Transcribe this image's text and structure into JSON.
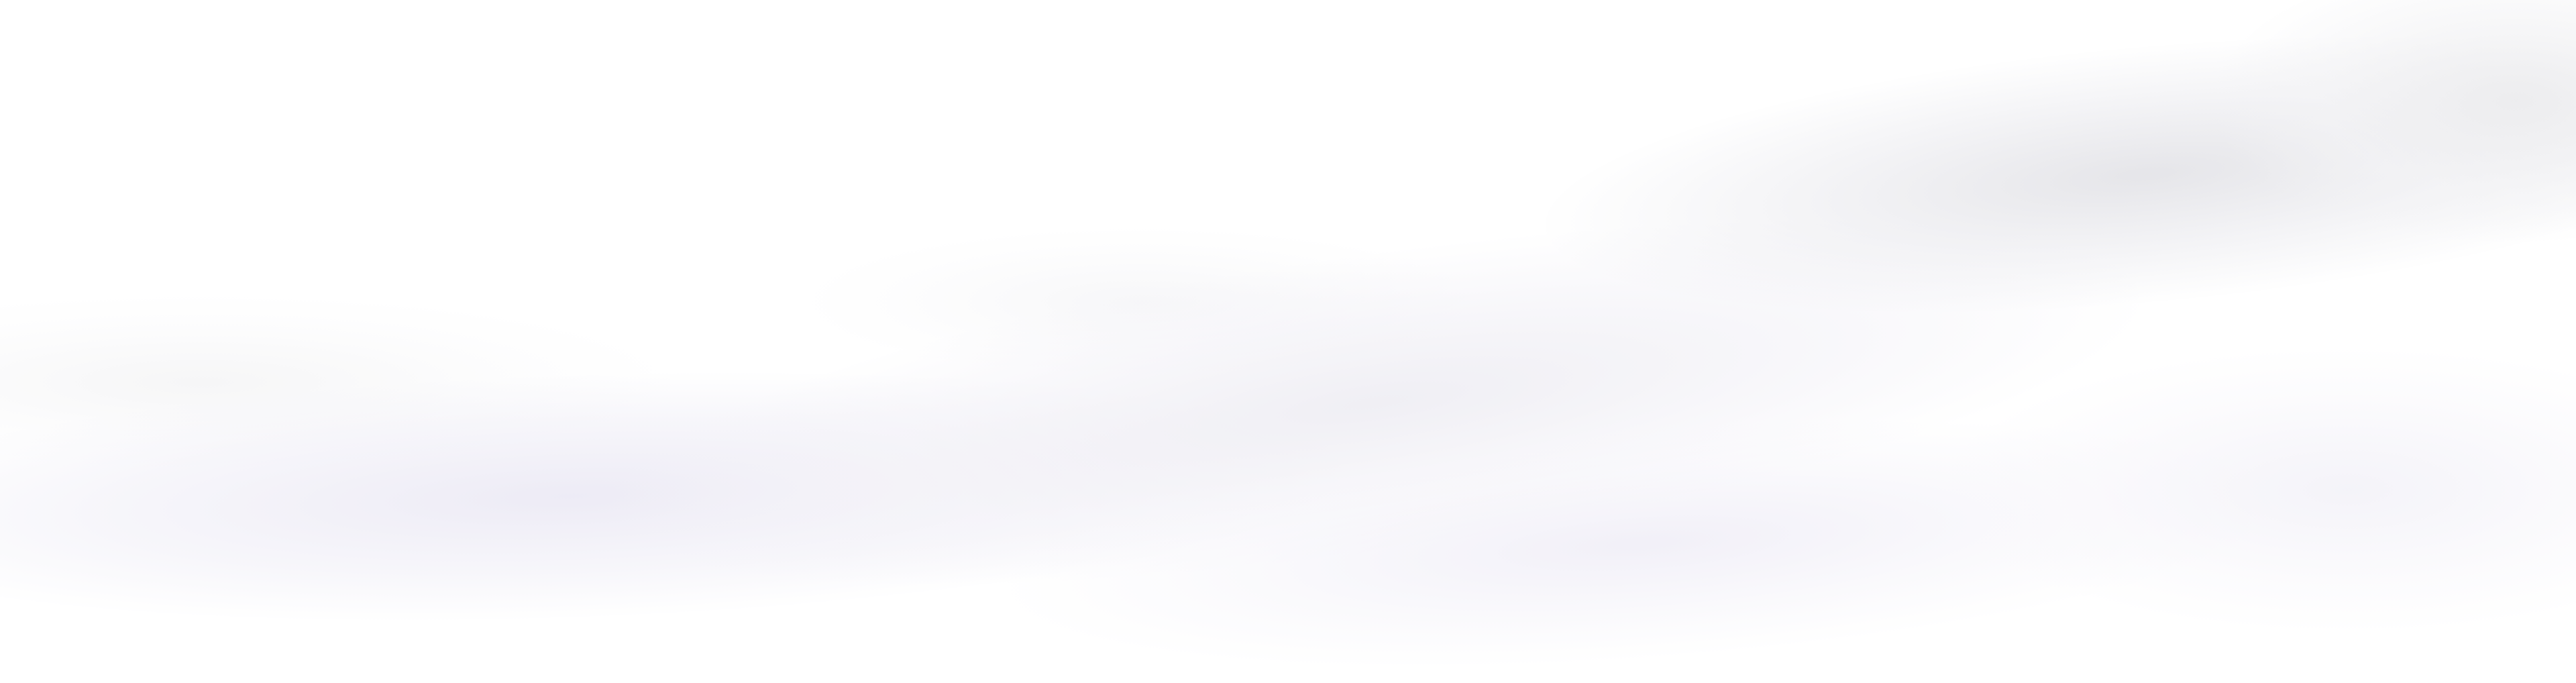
{
  "background": {
    "base_color": "#ffffff",
    "tint_colors": [
      "#e4e4e8",
      "#eceaf5",
      "#f0eef7",
      "#f5f5f6"
    ]
  }
}
